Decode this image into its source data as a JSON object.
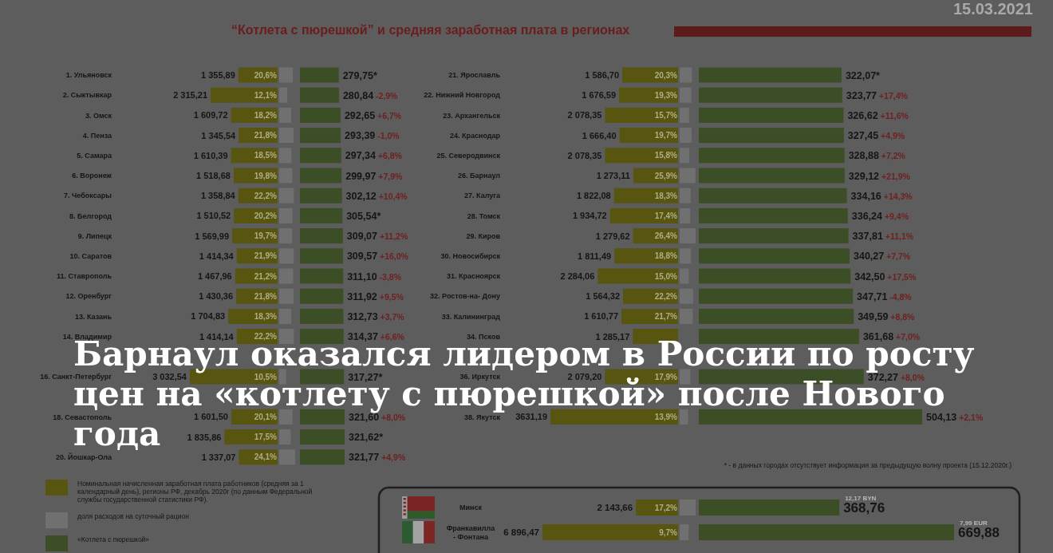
{
  "chart_data": [
    {
      "type": "bar",
      "orientation": "horizontal",
      "title": "“Котлета с пюрешкой” и средняя заработная плата в регионах",
      "categories": [
        "1. Ульяновск",
        "2. Сыктывкар",
        "3. Омск",
        "4. Пенза",
        "5. Самара",
        "6. Воронеж",
        "7. Чебоксары",
        "8. Белгород",
        "9. Липецк",
        "10. Саратов",
        "11. Ставрополь",
        "12. Оренбург",
        "13. Казань",
        "14. Владимир",
        null,
        "16. Санкт-Петербург",
        null,
        "18. Севастополь",
        null,
        "20. Йошкар-Ола"
      ],
      "series": [
        {
          "name": "Номинальная начисленная заработная плата работников (средняя за 1 календарный день), регионы РФ, декабрь 2020г (по данным Федеральной службы государственной статистики РФ).",
          "color": "#57550f",
          "values": [
            1355.89,
            2315.21,
            1609.72,
            1345.54,
            1610.39,
            1518.68,
            1358.84,
            1510.52,
            1569.99,
            1414.34,
            1467.96,
            1430.36,
            1704.83,
            1414.14,
            null,
            3032.54,
            null,
            1601.5,
            1835.86,
            1337.07
          ],
          "value_labels": [
            "1 355,89",
            "2 315,21",
            "1 609,72",
            "1 345,54",
            "1 610,39",
            "1 518,68",
            "1 358,84",
            "1 510,52",
            "1 569,99",
            "1 414,34",
            "1 467,96",
            "1 430,36",
            "1 704,83",
            "1 414,14",
            null,
            "3 032,54",
            null,
            "1 601,50",
            "1 835,86",
            "1 337,07"
          ]
        }
      ],
      "legend": "bottom left",
      "annotations": [
        "15.03.2021",
        "* - в данных городах отсутствует информация за предыдущую волну проекта (15.12.2020г.)",
        "Барнаул оказался лидером в России по росту\nцен на «котлету с пюрешкой» после Нового\nгода"
      ]
    },
    {
      "type": "bar",
      "orientation": "horizontal",
      "categories": [
        null,
        null,
        null,
        null,
        null,
        null,
        null,
        null,
        null,
        null,
        null,
        null,
        null,
        null,
        null,
        null,
        null,
        null,
        null,
        null
      ],
      "series": [
        {
          "name": "доля расходов на суточный рацион",
          "color": "#707070",
          "values": [
            20.6,
            12.1,
            18.2,
            21.8,
            18.5,
            19.8,
            22.2,
            20.2,
            19.7,
            21.9,
            21.2,
            21.8,
            18.3,
            22.2,
            null,
            10.5,
            null,
            20.1,
            17.5,
            24.1
          ],
          "value_labels": [
            "20,6%",
            "12,1%",
            "18,2%",
            "21,8%",
            "18,5%",
            "19,8%",
            "22,2%",
            "20,2%",
            "19,7%",
            "21,9%",
            "21,2%",
            "21,8%",
            "18,3%",
            "22,2%",
            null,
            "10,5%",
            null,
            "20,1%",
            "17,5%",
            "24,1%"
          ]
        }
      ],
      "legend": "bottom left"
    },
    {
      "type": "bar",
      "orientation": "horizontal",
      "categories": [
        null,
        null,
        null,
        null,
        null,
        null,
        null,
        null,
        null,
        null,
        null,
        null,
        null,
        null,
        null,
        null,
        null,
        null,
        null,
        null
      ],
      "series": [
        {
          "name": "«Котлета с пюрешкой»",
          "color": "#3c4e26",
          "values": [
            279.75,
            280.84,
            292.65,
            293.39,
            297.34,
            299.97,
            302.12,
            305.54,
            309.07,
            309.57,
            311.1,
            311.92,
            312.73,
            314.37,
            null,
            317.27,
            null,
            321.6,
            321.62,
            321.77
          ],
          "value_labels": [
            "279,75*",
            "280,84 -2,9%",
            "292,65 +6,7%",
            "293,39 -1,0%",
            "297,34 +6,8%",
            "299,97 +7,9%",
            "302,12 +10,4%",
            "305,54*",
            "309,07 +11,2%",
            "309,57 +16,0%",
            "311,10 -3,8%",
            "311,92 +9,5%",
            "312,73 +3,7%",
            "314,37 +6,6%",
            null,
            "317,27*",
            null,
            "321,60 +8,0%",
            "321,62*",
            "321,77 +4,9%"
          ]
        }
      ],
      "legend": "bottom left"
    },
    {
      "type": "bar",
      "orientation": "horizontal",
      "categories": [
        "21. Ярославль",
        "22. Нижний Новгород",
        "23. Архангельск",
        "24. Краснодар",
        "25. Северодвинск",
        "26. Барнаул",
        "27. Калуга",
        "28. Томск",
        "29. Киров",
        "30. Новосибирск",
        "31. Красноярск",
        "32. Ростов-на- Дону",
        "33. Калининград",
        "34. Псков",
        null,
        "36. Иркутск",
        null,
        "38. Якутск"
      ],
      "series": [
        {
          "color": "#57550f",
          "values": [
            1586.7,
            1676.59,
            2078.35,
            1666.4,
            2078.35,
            1273.11,
            1822.08,
            1934.72,
            1279.62,
            1811.49,
            2284.06,
            1564.32,
            1610.77,
            1285.17,
            null,
            2079.2,
            null,
            3631.19
          ],
          "value_labels": [
            "1 586,70",
            "1 676,59",
            "2 078,35",
            "1 666,40",
            "2 078,35",
            "1 273,11",
            "1 822,08",
            "1 934,72",
            "1 279,62",
            "1 811,49",
            "2 284,06",
            "1 564,32",
            "1 610,77",
            "1 285,17",
            null,
            "2 079,20",
            null,
            "3631,19"
          ]
        }
      ]
    },
    {
      "type": "bar",
      "orientation": "horizontal",
      "categories": [
        null,
        null,
        null,
        null,
        null,
        null,
        null,
        null,
        null,
        null,
        null,
        null,
        null,
        null,
        null,
        null,
        null,
        null
      ],
      "series": [
        {
          "color": "#707070",
          "values": [
            20.3,
            19.3,
            15.7,
            19.7,
            15.8,
            25.9,
            18.3,
            17.4,
            26.4,
            18.8,
            15.0,
            22.2,
            21.7,
            null,
            null,
            17.9,
            null,
            13.9
          ],
          "value_labels": [
            "20,3%",
            "19,3%",
            "15,7%",
            "19,7%",
            "15,8%",
            "25,9%",
            "18,3%",
            "17,4%",
            "26,4%",
            "18,8%",
            "15,0%",
            "22,2%",
            "21,7%",
            null,
            null,
            "17,9%",
            null,
            "13,9%"
          ]
        }
      ]
    },
    {
      "type": "bar",
      "orientation": "horizontal",
      "categories": [
        null,
        null,
        null,
        null,
        null,
        null,
        null,
        null,
        null,
        null,
        null,
        null,
        null,
        null,
        null,
        null,
        null,
        null
      ],
      "series": [
        {
          "color": "#3c4e26",
          "values": [
            322.07,
            323.77,
            326.62,
            327.45,
            328.88,
            329.12,
            334.16,
            336.24,
            337.81,
            340.27,
            342.5,
            347.71,
            349.59,
            361.68,
            null,
            372.27,
            null,
            504.13
          ],
          "value_labels": [
            "322,07*",
            "323,77 +17,4%",
            "326,62 +11,6%",
            "327,45 +4,9%",
            "328,88 +7,2%",
            "329,12 +21,9%",
            "334,16 +14,3%",
            "336,24 +9,4%",
            "337,81 +11,1%",
            "340,27 +7,7%",
            "342,50 +17,5%",
            "347,71 -4,8%",
            "349,59 +8,8%",
            "361,68 +7,0%",
            null,
            "372,27 +8,0%",
            null,
            "504,13 +2,1%"
          ]
        }
      ]
    },
    {
      "type": "bar",
      "orientation": "horizontal",
      "categories": [
        "Минск",
        "Франкавилла\n- Фонтана"
      ],
      "series": [
        {
          "color": "#57550f",
          "values": [
            2143.66,
            6896.47
          ],
          "value_labels": [
            "2 143,66",
            "6 896,47"
          ]
        }
      ]
    },
    {
      "type": "bar",
      "orientation": "horizontal",
      "categories": [
        null,
        null
      ],
      "series": [
        {
          "color": "#707070",
          "values": [
            17.2,
            9.7
          ],
          "value_labels": [
            "17,2%",
            "9,7%"
          ]
        }
      ]
    },
    {
      "type": "bar",
      "orientation": "horizontal",
      "categories": [
        null,
        null
      ],
      "series": [
        {
          "color": "#3c4e26",
          "values": [
            368.76,
            669.88
          ],
          "value_labels": [
            "368,76",
            "669,88"
          ]
        }
      ],
      "annotations": [
        "12,17 BYN",
        "7,99 EUR"
      ]
    }
  ]
}
